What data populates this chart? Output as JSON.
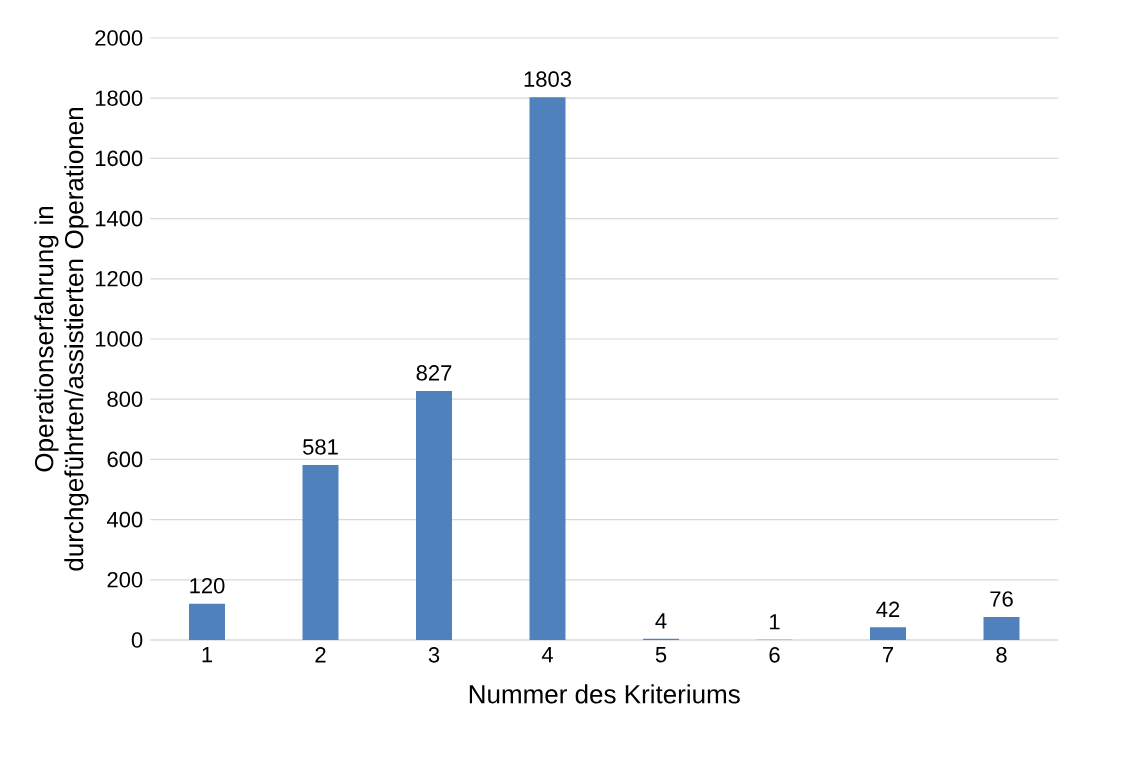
{
  "chart_data": {
    "type": "bar",
    "xlabel": "Nummer des Kriteriums",
    "ylabel": "Operationserfahrung in durchgeführten/assistierten Operationen",
    "categories": [
      "1",
      "2",
      "3",
      "4",
      "5",
      "6",
      "7",
      "8"
    ],
    "values": [
      120,
      581,
      827,
      1803,
      4,
      1,
      42,
      76
    ],
    "color": "#4f81bd",
    "ylim": [
      0,
      2000
    ],
    "yticks": [
      0,
      200,
      400,
      600,
      800,
      1000,
      1200,
      1400,
      1600,
      1800,
      2000
    ],
    "grid": "y",
    "data_labels": true
  }
}
